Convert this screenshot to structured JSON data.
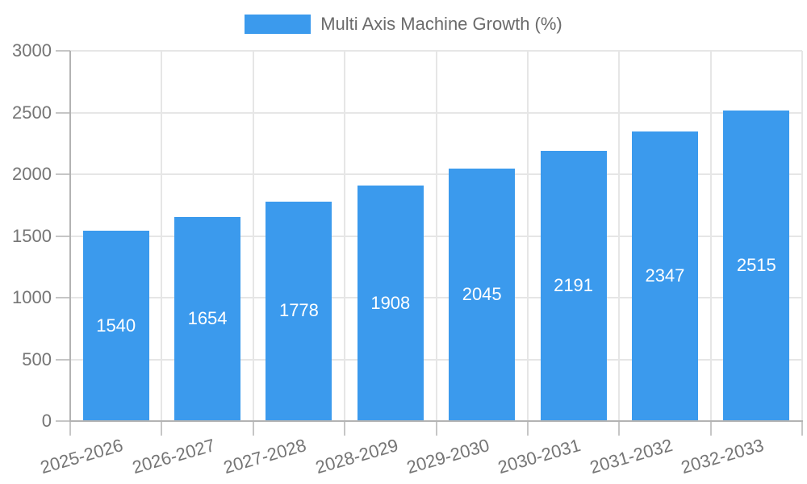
{
  "legend": {
    "label": "Multi Axis Machine Growth (%)"
  },
  "colors": {
    "bar": "#3b9aed",
    "gridline": "#e6e6e6",
    "axis_line": "#b3b3b3",
    "tick_mark": "#c6c6c6",
    "tick_label_text": "#757575",
    "value_label_text": "#ffffff",
    "legend_text": "#6b6b6b",
    "background": "#ffffff"
  },
  "chart_data": {
    "type": "bar",
    "title": "Multi Axis Machine Growth (%)",
    "series_name": "Multi Axis Machine Growth (%)",
    "categories": [
      "2025-2026",
      "2026-2027",
      "2027-2028",
      "2028-2029",
      "2029-2030",
      "2030-2031",
      "2031-2032",
      "2032-2033"
    ],
    "values": [
      1540,
      1654,
      1778,
      1908,
      2045,
      2191,
      2347,
      2515
    ],
    "value_labels_shown": true,
    "value_label_position": "centered-inside-bar",
    "xlabel": "",
    "ylabel": "",
    "ylim": [
      0,
      3000
    ],
    "yticks": [
      0,
      500,
      1000,
      1500,
      2000,
      2500,
      3000
    ],
    "grid": true,
    "legend_position": "top-center",
    "x_tick_rotation_deg": -16
  }
}
